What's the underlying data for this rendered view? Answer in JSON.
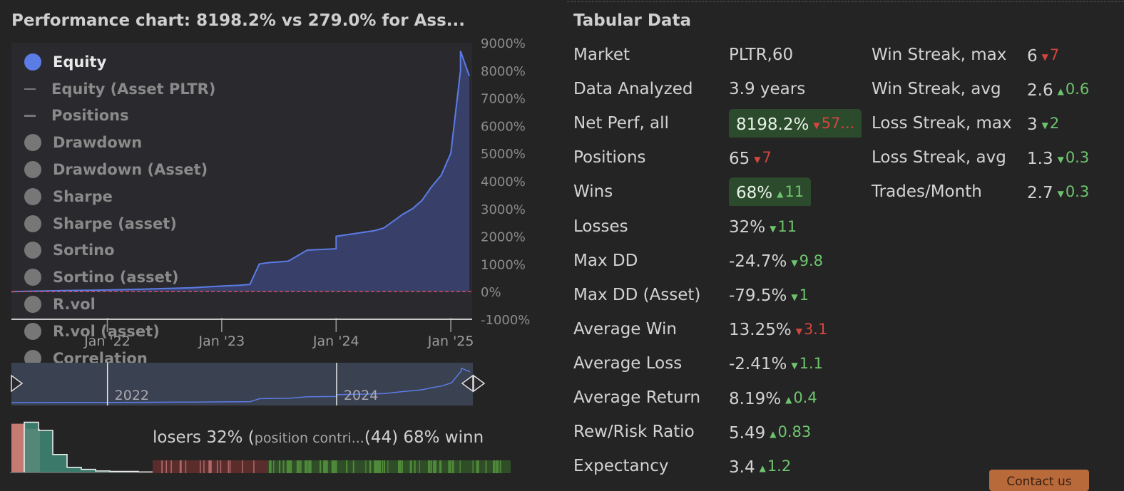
{
  "chart": {
    "title": "Performance chart: 8198.2% vs 279.0% for Ass...",
    "legend": [
      {
        "label": "Equity",
        "active": true,
        "marker": "dot",
        "color": "#5b7ce6"
      },
      {
        "label": "Equity (Asset PLTR)",
        "active": false,
        "marker": "line"
      },
      {
        "label": "Positions",
        "active": false,
        "marker": "thick-line"
      },
      {
        "label": "Drawdown",
        "active": false,
        "marker": "dot"
      },
      {
        "label": "Drawdown (Asset)",
        "active": false,
        "marker": "dot"
      },
      {
        "label": "Sharpe",
        "active": false,
        "marker": "dot"
      },
      {
        "label": "Sharpe (asset)",
        "active": false,
        "marker": "dot"
      },
      {
        "label": "Sortino",
        "active": false,
        "marker": "dot"
      },
      {
        "label": "Sortino (asset)",
        "active": false,
        "marker": "dot"
      },
      {
        "label": "R.vol",
        "active": false,
        "marker": "dot"
      },
      {
        "label": "R.vol (asset)",
        "active": false,
        "marker": "dot"
      },
      {
        "label": "Correlation",
        "active": false,
        "marker": "dot"
      }
    ],
    "y_ticks": [
      "9000%",
      "8000%",
      "7000%",
      "6000%",
      "5000%",
      "4000%",
      "3000%",
      "2000%",
      "1000%",
      "0%",
      "-1000%"
    ],
    "x_ticks": [
      "Jan '22",
      "Jan '23",
      "Jan '24",
      "Jan '25"
    ],
    "navigator_labels": [
      "2022",
      "2024"
    ],
    "colors": {
      "equity": "#5b7ce6",
      "area": "#38406a",
      "zero_line": "#d04a5a",
      "plot_bg": "#2a2a2e"
    }
  },
  "chart_data": {
    "type": "area",
    "ylim": [
      -1000,
      9000
    ],
    "x": [
      "2021-03",
      "2021-06",
      "2021-09",
      "2022-01",
      "2022-04",
      "2022-07",
      "2022-10",
      "2023-01",
      "2023-03",
      "2023-04",
      "2023-05",
      "2023-06",
      "2023-08",
      "2023-10",
      "2024-01",
      "2024-01",
      "2024-03",
      "2024-05",
      "2024-06",
      "2024-08",
      "2024-09",
      "2024-10",
      "2024-11",
      "2024-12",
      "2025-01",
      "2025-02",
      "2025-02",
      "2025-03"
    ],
    "series": [
      {
        "values": [
          0,
          20,
          40,
          60,
          80,
          110,
          140,
          200,
          230,
          260,
          1000,
          1050,
          1100,
          1500,
          1550,
          2000,
          2100,
          2200,
          2300,
          2800,
          3000,
          3300,
          3800,
          4200,
          5000,
          8000,
          8700,
          7800
        ]
      }
    ]
  },
  "distribution": {
    "text_losers": "losers 32% (",
    "text_small": "position contri...",
    "text_winners": "(44) 68% winn",
    "loss_share": 0.32,
    "histogram": {
      "losers": [
        0.95,
        0.85
      ],
      "winners": [
        0.98,
        0.82,
        0.35,
        0.1,
        0.06,
        0.03,
        0.02,
        0.02,
        0.01
      ]
    }
  },
  "table": {
    "title": "Tabular Data",
    "rows": [
      {
        "label": "Market",
        "value": "PLTR,60"
      },
      {
        "label": "Data Analyzed",
        "value": "3.9 years"
      },
      {
        "label": "Net Perf, all",
        "value": "8198.2%",
        "change": "57...",
        "dir": "down",
        "highlight": true
      },
      {
        "label": "Positions",
        "value": "65",
        "change": "7",
        "dir": "down"
      },
      {
        "label": "Wins",
        "value": "68%",
        "change": "11",
        "dir": "up",
        "highlight": true
      },
      {
        "label": "Losses",
        "value": "32%",
        "change": "11",
        "dir": "down-good"
      },
      {
        "label": "Max DD",
        "value": "-24.7%",
        "change": "9.8",
        "dir": "down-good"
      },
      {
        "label": "Max DD (Asset)",
        "value": "-79.5%",
        "change": "1",
        "dir": "down-good"
      },
      {
        "label": "Average Win",
        "value": "13.25%",
        "change": "3.1",
        "dir": "down"
      },
      {
        "label": "Average Loss",
        "value": "-2.41%",
        "change": "1.1",
        "dir": "down-good"
      },
      {
        "label": "Average Return",
        "value": "8.19%",
        "change": "0.4",
        "dir": "up"
      },
      {
        "label": "Rew/Risk Ratio",
        "value": "5.49",
        "change": "0.83",
        "dir": "up"
      },
      {
        "label": "Expectancy",
        "value": "3.4",
        "change": "1.2",
        "dir": "up"
      }
    ],
    "side_rows": [
      {
        "label": "Win Streak, max",
        "value": "6",
        "change": "7",
        "dir": "down"
      },
      {
        "label": "Win Streak, avg",
        "value": "2.6",
        "change": "0.6",
        "dir": "up"
      },
      {
        "label": "Loss Streak, max",
        "value": "3",
        "change": "2",
        "dir": "down-good"
      },
      {
        "label": "Loss Streak, avg",
        "value": "1.3",
        "change": "0.3",
        "dir": "down-good"
      },
      {
        "label": "Trades/Month",
        "value": "2.7",
        "change": "0.3",
        "dir": "down-good"
      }
    ]
  },
  "contact_button": {
    "label": "Contact us"
  }
}
